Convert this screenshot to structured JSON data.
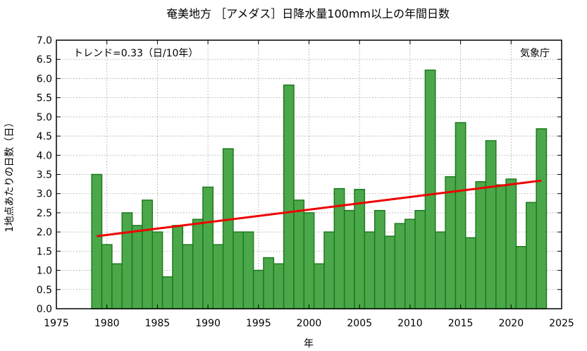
{
  "chart_data": {
    "type": "bar",
    "title": "奄美地方 ［アメダス］日降水量100mm以上の年間日数",
    "xlabel": "年",
    "ylabel": "1地点あたりの日数（日）",
    "trend_label": "トレンド=0.33（日/10年）",
    "source_label": "気象庁",
    "xlim": [
      1975,
      2025
    ],
    "ylim": [
      0.0,
      7.0
    ],
    "x_ticks": [
      "1975",
      "1980",
      "1985",
      "1990",
      "1995",
      "2000",
      "2005",
      "2010",
      "2015",
      "2020",
      "2025"
    ],
    "y_ticks": [
      "0.0",
      "0.5",
      "1.0",
      "1.5",
      "2.0",
      "2.5",
      "3.0",
      "3.5",
      "4.0",
      "4.5",
      "5.0",
      "5.5",
      "6.0",
      "6.5",
      "7.0"
    ],
    "grid": true,
    "bar_color": "#4aa84a",
    "bar_edge_color": "#1e7a1e",
    "trend_color": "#ee0000",
    "years": [
      1979,
      1980,
      1981,
      1982,
      1983,
      1984,
      1985,
      1986,
      1987,
      1988,
      1989,
      1990,
      1991,
      1992,
      1993,
      1994,
      1995,
      1996,
      1997,
      1998,
      1999,
      2000,
      2001,
      2002,
      2003,
      2004,
      2005,
      2006,
      2007,
      2008,
      2009,
      2010,
      2011,
      2012,
      2013,
      2014,
      2015,
      2016,
      2017,
      2018,
      2019,
      2020,
      2021,
      2022,
      2023
    ],
    "values": [
      3.5,
      1.67,
      1.17,
      2.5,
      2.17,
      2.83,
      2.0,
      0.83,
      2.17,
      1.67,
      2.33,
      3.17,
      1.67,
      4.17,
      2.0,
      2.0,
      1.0,
      1.33,
      1.17,
      5.83,
      2.83,
      2.5,
      1.17,
      2.0,
      3.13,
      2.56,
      3.11,
      2.0,
      2.56,
      1.89,
      2.22,
      2.33,
      2.56,
      6.22,
      2.0,
      3.44,
      4.85,
      1.85,
      3.31,
      4.38,
      3.23,
      3.38,
      1.62,
      2.77,
      4.69
    ],
    "trend_line": {
      "x": [
        1979,
        2023
      ],
      "y": [
        1.89,
        3.34
      ]
    }
  }
}
